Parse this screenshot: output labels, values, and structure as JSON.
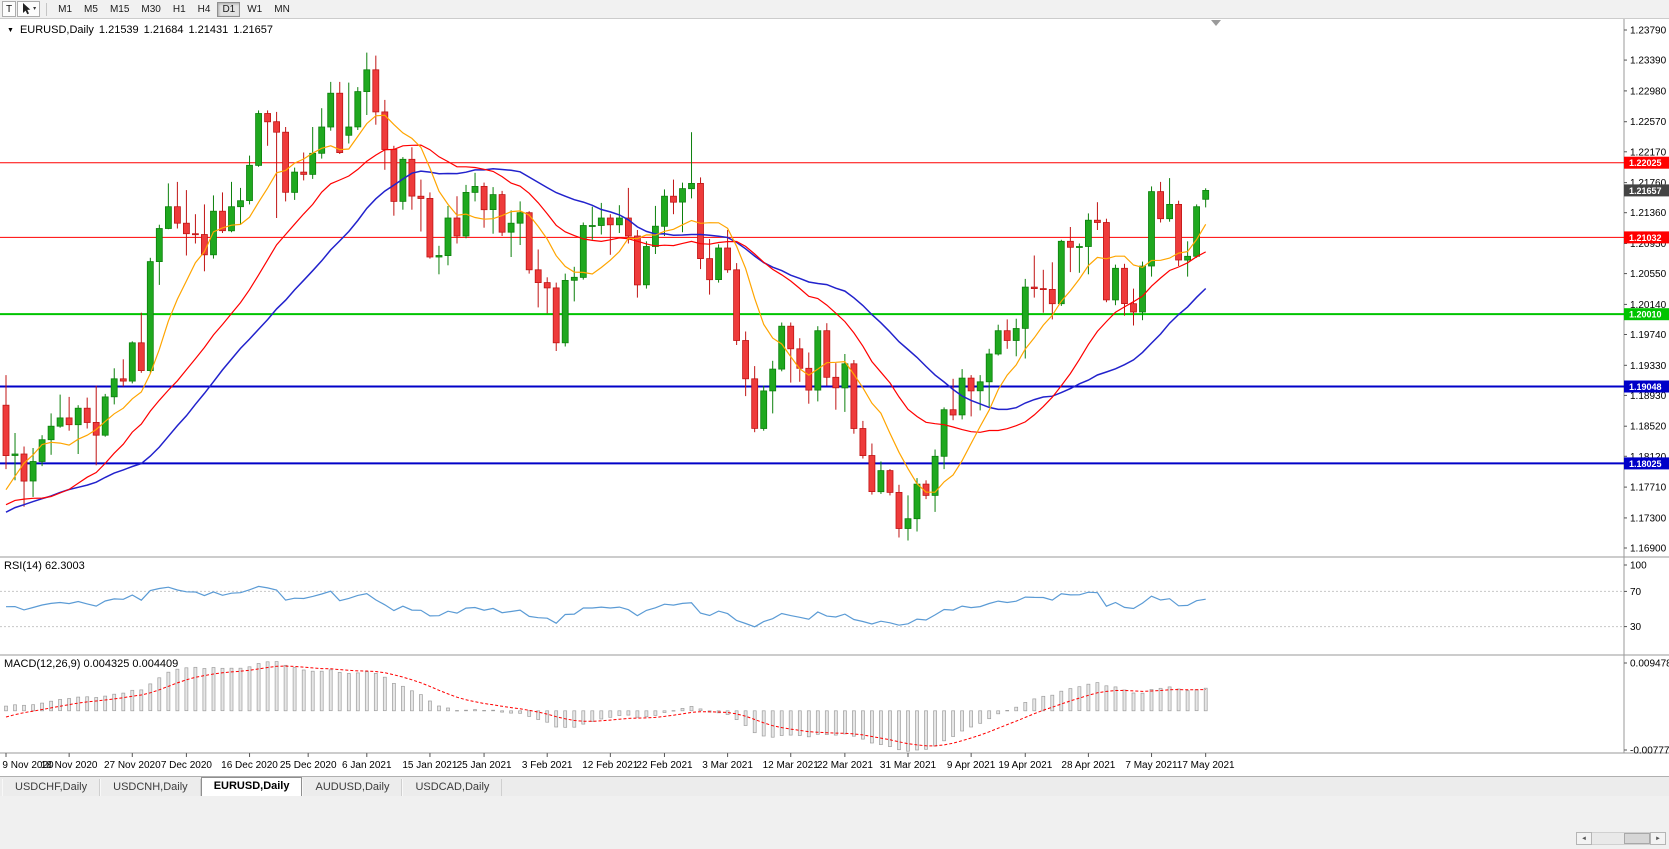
{
  "toolbar": {
    "chart_mode_button": "T",
    "timeframes": [
      "M1",
      "M5",
      "M15",
      "M30",
      "H1",
      "H4",
      "D1",
      "W1",
      "MN"
    ],
    "active_timeframe": "D1"
  },
  "icons": {
    "dropdown_caret": "▾"
  },
  "chart_header": {
    "collapse_icon": "▼",
    "symbol": "EURUSD,Daily",
    "open": "1.21539",
    "high": "1.21684",
    "low": "1.21431",
    "close": "1.21657"
  },
  "price_axis": {
    "labels": [
      "1.23790",
      "1.23390",
      "1.22980",
      "1.22570",
      "1.22170",
      "1.21760",
      "1.21360",
      "1.20950",
      "1.20550",
      "1.20140",
      "1.19740",
      "1.19330",
      "1.18930",
      "1.18520",
      "1.18120",
      "1.17710",
      "1.17300",
      "1.16900"
    ]
  },
  "hlines": [
    {
      "price": 1.22025,
      "label": "1.22025",
      "color": "#ff0000",
      "width": 1
    },
    {
      "price": 1.21032,
      "label": "1.21032",
      "color": "#ff0000",
      "width": 1
    },
    {
      "price": 1.2001,
      "label": "1.20010",
      "color": "#00c400",
      "width": 2
    },
    {
      "price": 1.19048,
      "label": "1.19048",
      "color": "#0000c8",
      "width": 2
    },
    {
      "price": 1.18025,
      "label": "1.18025",
      "color": "#0000c8",
      "width": 2
    }
  ],
  "current_price": {
    "value": 1.21657,
    "label": "1.21657"
  },
  "date_axis": [
    {
      "label": "9 Nov 2020",
      "index": 0
    },
    {
      "label": "18 Nov 2020",
      "index": 7
    },
    {
      "label": "27 Nov 2020",
      "index": 14
    },
    {
      "label": "7 Dec 2020",
      "index": 20
    },
    {
      "label": "16 Dec 2020",
      "index": 27
    },
    {
      "label": "25 Dec 2020",
      "index": 33.5
    },
    {
      "label": "6 Jan 2021",
      "index": 40
    },
    {
      "label": "15 Jan 2021",
      "index": 47
    },
    {
      "label": "25 Jan 2021",
      "index": 53
    },
    {
      "label": "3 Feb 2021",
      "index": 60
    },
    {
      "label": "12 Feb 2021",
      "index": 67
    },
    {
      "label": "22 Feb 2021",
      "index": 73
    },
    {
      "label": "3 Mar 2021",
      "index": 80
    },
    {
      "label": "12 Mar 2021",
      "index": 87
    },
    {
      "label": "22 Mar 2021",
      "index": 93
    },
    {
      "label": "31 Mar 2021",
      "index": 100
    },
    {
      "label": "9 Apr 2021",
      "index": 107
    },
    {
      "label": "19 Apr 2021",
      "index": 113
    },
    {
      "label": "28 Apr 2021",
      "index": 120
    },
    {
      "label": "7 May 2021",
      "index": 127
    },
    {
      "label": "17 May 2021",
      "index": 133
    }
  ],
  "rsi_panel": {
    "title": "RSI(14)",
    "value": "62.3003",
    "axis_labels": [
      {
        "v": 100,
        "label": "100"
      },
      {
        "v": 70,
        "label": "70"
      },
      {
        "v": 30,
        "label": "30"
      }
    ],
    "dashed_levels": [
      70,
      30
    ]
  },
  "macd_panel": {
    "title": "MACD(12,26,9)",
    "value": "0.004325 0.004409",
    "axis_max": 0.009478,
    "axis_min": -0.007778,
    "axis_max_label": "0.009478",
    "axis_min_label": "-0.007778"
  },
  "tabs": [
    {
      "label": "USDCHF,Daily",
      "active": false
    },
    {
      "label": "USDCNH,Daily",
      "active": false
    },
    {
      "label": "EURUSD,Daily",
      "active": true
    },
    {
      "label": "AUDUSD,Daily",
      "active": false
    },
    {
      "label": "USDCAD,Daily",
      "active": false
    }
  ],
  "scrollbar": {
    "left_arrow": "◄",
    "right_arrow": "►"
  },
  "colors": {
    "bull": "#1fa81f",
    "bull_stroke": "#0c800c",
    "bear": "#ee3b3b",
    "bear_stroke": "#c01414",
    "current_price_box": "#444444",
    "rsi_line": "#5b9bd5",
    "macd_hist_fill": "#e6e6e6",
    "macd_hist_stroke": "#9e9e9e",
    "macd_signal": "#ff0000",
    "panel_border": "#9a9a9a",
    "level_dash": "#c8c8c8"
  },
  "chart_data": {
    "type": "candlestick",
    "symbol": "EURUSD",
    "timeframe": "Daily",
    "y_range": [
      1.169,
      1.2379
    ],
    "y_tick_step": 0.0041,
    "overlays": [
      {
        "name": "ma-slow",
        "type": "sma",
        "period": 30,
        "color": "#2222cc",
        "width": 1.5
      },
      {
        "name": "ma-mid",
        "type": "sma",
        "period": 20,
        "color": "#ff0000",
        "width": 1.2
      },
      {
        "name": "ma-fast",
        "type": "sma",
        "period": 8,
        "color": "#ffa500",
        "width": 1.2
      }
    ],
    "indicators": [
      {
        "name": "RSI",
        "period": 14,
        "current": 62.3003
      },
      {
        "name": "MACD",
        "fast": 12,
        "slow": 26,
        "signal": 9,
        "current": [
          0.004325,
          0.004409
        ]
      }
    ],
    "pre_history_closes": [
      1.1915,
      1.186,
      1.1815,
      1.1782,
      1.1735,
      1.167,
      1.1632,
      1.1663,
      1.168,
      1.172,
      1.1745,
      1.1717,
      1.174,
      1.1786,
      1.1771,
      1.1723,
      1.1701,
      1.1744,
      1.1785,
      1.1827,
      1.181,
      1.177,
      1.1758,
      1.1713,
      1.1695,
      1.1716,
      1.1648,
      1.1645,
      1.1672,
      1.164,
      1.1715,
      1.1725,
      1.1828,
      1.1872,
      1.1875
    ],
    "candles": [
      [
        "2020-11-09",
        1.188,
        1.192,
        1.1795,
        1.1813
      ],
      [
        "2020-11-10",
        1.1813,
        1.1843,
        1.178,
        1.1815
      ],
      [
        "2020-11-11",
        1.1815,
        1.1825,
        1.1745,
        1.1779
      ],
      [
        "2020-11-12",
        1.1779,
        1.1823,
        1.1758,
        1.1805
      ],
      [
        "2020-11-13",
        1.1805,
        1.184,
        1.1799,
        1.1834
      ],
      [
        "2020-11-16",
        1.1834,
        1.1869,
        1.1814,
        1.1852
      ],
      [
        "2020-11-17",
        1.1852,
        1.1894,
        1.185,
        1.1863
      ],
      [
        "2020-11-18",
        1.1863,
        1.1891,
        1.1846,
        1.1854
      ],
      [
        "2020-11-19",
        1.1854,
        1.188,
        1.1815,
        1.1876
      ],
      [
        "2020-11-20",
        1.1876,
        1.189,
        1.1849,
        1.1857
      ],
      [
        "2020-11-23",
        1.1857,
        1.1906,
        1.18,
        1.184
      ],
      [
        "2020-11-24",
        1.184,
        1.1895,
        1.1838,
        1.1891
      ],
      [
        "2020-11-25",
        1.1891,
        1.1929,
        1.1881,
        1.1915
      ],
      [
        "2020-11-26",
        1.1915,
        1.1941,
        1.1905,
        1.1912
      ],
      [
        "2020-11-27",
        1.1912,
        1.1965,
        1.1909,
        1.1963
      ],
      [
        "2020-11-30",
        1.1963,
        1.2003,
        1.1923,
        1.1926
      ],
      [
        "2020-12-01",
        1.1926,
        1.2076,
        1.1923,
        1.2071
      ],
      [
        "2020-12-02",
        1.2071,
        1.212,
        1.204,
        1.2115
      ],
      [
        "2020-12-03",
        1.2115,
        1.2175,
        1.2114,
        1.2144
      ],
      [
        "2020-12-04",
        1.2144,
        1.2177,
        1.2115,
        1.2122
      ],
      [
        "2020-12-07",
        1.2122,
        1.2166,
        1.2079,
        1.2108
      ],
      [
        "2020-12-08",
        1.2108,
        1.2134,
        1.2095,
        1.2107
      ],
      [
        "2020-12-09",
        1.2107,
        1.2147,
        1.2058,
        1.208
      ],
      [
        "2020-12-10",
        1.208,
        1.2159,
        1.2075,
        1.2138
      ],
      [
        "2020-12-11",
        1.2138,
        1.2163,
        1.2109,
        1.2112
      ],
      [
        "2020-12-14",
        1.2112,
        1.2177,
        1.211,
        1.2144
      ],
      [
        "2020-12-15",
        1.2144,
        1.2169,
        1.212,
        1.2152
      ],
      [
        "2020-12-16",
        1.2152,
        1.2212,
        1.2147,
        1.2199
      ],
      [
        "2020-12-17",
        1.2199,
        1.2272,
        1.2197,
        1.2268
      ],
      [
        "2020-12-18",
        1.2268,
        1.2272,
        1.2225,
        1.2257
      ],
      [
        "2020-12-21",
        1.2257,
        1.227,
        1.2129,
        1.2243
      ],
      [
        "2020-12-22",
        1.2243,
        1.225,
        1.2151,
        1.2163
      ],
      [
        "2020-12-23",
        1.2163,
        1.2196,
        1.2153,
        1.219
      ],
      [
        "2020-12-24",
        1.219,
        1.2216,
        1.2179,
        1.2187
      ],
      [
        "2020-12-28",
        1.2187,
        1.225,
        1.2181,
        1.2215
      ],
      [
        "2020-12-29",
        1.2215,
        1.2275,
        1.2208,
        1.225
      ],
      [
        "2020-12-30",
        1.225,
        1.231,
        1.2245,
        1.2295
      ],
      [
        "2020-12-31",
        1.2295,
        1.231,
        1.2214,
        1.2216
      ],
      [
        "2021-01-04",
        1.2239,
        1.2309,
        1.2228,
        1.225
      ],
      [
        "2021-01-05",
        1.225,
        1.2303,
        1.2246,
        1.2297
      ],
      [
        "2021-01-06",
        1.2297,
        1.2349,
        1.2266,
        1.2326
      ],
      [
        "2021-01-07",
        1.2326,
        1.2345,
        1.2253,
        1.227
      ],
      [
        "2021-01-08",
        1.227,
        1.2286,
        1.2193,
        1.222
      ],
      [
        "2021-01-11",
        1.222,
        1.2225,
        1.2132,
        1.2151
      ],
      [
        "2021-01-12",
        1.2151,
        1.221,
        1.214,
        1.2207
      ],
      [
        "2021-01-13",
        1.2207,
        1.2223,
        1.214,
        1.2158
      ],
      [
        "2021-01-14",
        1.2158,
        1.218,
        1.2111,
        1.2155
      ],
      [
        "2021-01-15",
        1.2155,
        1.2163,
        1.2075,
        1.2077
      ],
      [
        "2021-01-18",
        1.2077,
        1.2092,
        1.2054,
        1.2079
      ],
      [
        "2021-01-19",
        1.2079,
        1.2145,
        1.2066,
        1.2129
      ],
      [
        "2021-01-20",
        1.2129,
        1.2158,
        1.2095,
        1.2105
      ],
      [
        "2021-01-21",
        1.2105,
        1.2173,
        1.2102,
        1.2163
      ],
      [
        "2021-01-22",
        1.2163,
        1.2189,
        1.2151,
        1.2171
      ],
      [
        "2021-01-25",
        1.2171,
        1.2176,
        1.2116,
        1.214
      ],
      [
        "2021-01-26",
        1.214,
        1.217,
        1.2108,
        1.216
      ],
      [
        "2021-01-27",
        1.216,
        1.2165,
        1.2105,
        1.211
      ],
      [
        "2021-01-28",
        1.211,
        1.2139,
        1.2077,
        1.2122
      ],
      [
        "2021-01-29",
        1.2122,
        1.2151,
        1.2093,
        1.2136
      ],
      [
        "2021-02-01",
        1.2136,
        1.2138,
        1.2055,
        1.206
      ],
      [
        "2021-02-02",
        1.206,
        1.2087,
        1.201,
        1.2043
      ],
      [
        "2021-02-03",
        1.2043,
        1.205,
        1.2002,
        1.2036
      ],
      [
        "2021-02-04",
        1.2036,
        1.2043,
        1.1952,
        1.1963
      ],
      [
        "2021-02-05",
        1.1963,
        1.2055,
        1.1958,
        1.2046
      ],
      [
        "2021-02-08",
        1.2046,
        1.2064,
        1.2018,
        1.205
      ],
      [
        "2021-02-09",
        1.205,
        1.2123,
        1.2047,
        1.2119
      ],
      [
        "2021-02-10",
        1.2119,
        1.2144,
        1.21,
        1.2119
      ],
      [
        "2021-02-11",
        1.2119,
        1.2149,
        1.2107,
        1.2129
      ],
      [
        "2021-02-12",
        1.2129,
        1.2134,
        1.208,
        1.212
      ],
      [
        "2021-02-15",
        1.212,
        1.2146,
        1.2109,
        1.2129
      ],
      [
        "2021-02-16",
        1.2129,
        1.2169,
        1.2095,
        1.2105
      ],
      [
        "2021-02-17",
        1.2105,
        1.2113,
        1.2023,
        1.204
      ],
      [
        "2021-02-18",
        1.204,
        1.2098,
        1.2035,
        1.2091
      ],
      [
        "2021-02-19",
        1.2091,
        1.2145,
        1.2081,
        1.2118
      ],
      [
        "2021-02-22",
        1.2118,
        1.2167,
        1.2105,
        1.2158
      ],
      [
        "2021-02-23",
        1.2158,
        1.218,
        1.2134,
        1.215
      ],
      [
        "2021-02-24",
        1.215,
        1.2176,
        1.211,
        1.2168
      ],
      [
        "2021-02-25",
        1.2168,
        1.2243,
        1.2155,
        1.2175
      ],
      [
        "2021-02-26",
        1.2175,
        1.2183,
        1.2061,
        1.2075
      ],
      [
        "2021-03-01",
        1.2075,
        1.2101,
        1.2027,
        1.2047
      ],
      [
        "2021-03-02",
        1.2047,
        1.2094,
        1.2043,
        1.2089
      ],
      [
        "2021-03-03",
        1.2089,
        1.2113,
        1.2056,
        1.206
      ],
      [
        "2021-03-04",
        1.206,
        1.2069,
        1.196,
        1.1966
      ],
      [
        "2021-03-05",
        1.1966,
        1.1978,
        1.1892,
        1.1915
      ],
      [
        "2021-03-08",
        1.1915,
        1.1932,
        1.1844,
        1.1849
      ],
      [
        "2021-03-09",
        1.1849,
        1.1906,
        1.1846,
        1.1899
      ],
      [
        "2021-03-10",
        1.1899,
        1.1939,
        1.1869,
        1.1928
      ],
      [
        "2021-03-11",
        1.1928,
        1.199,
        1.1925,
        1.1985
      ],
      [
        "2021-03-12",
        1.1985,
        1.199,
        1.191,
        1.1955
      ],
      [
        "2021-03-15",
        1.1955,
        1.1969,
        1.1911,
        1.1929
      ],
      [
        "2021-03-16",
        1.1929,
        1.195,
        1.1882,
        1.19
      ],
      [
        "2021-03-17",
        1.19,
        1.1985,
        1.1885,
        1.1979
      ],
      [
        "2021-03-18",
        1.1979,
        1.1989,
        1.1906,
        1.1917
      ],
      [
        "2021-03-19",
        1.1917,
        1.1936,
        1.1874,
        1.1903
      ],
      [
        "2021-03-22",
        1.1903,
        1.1948,
        1.1871,
        1.1935
      ],
      [
        "2021-03-23",
        1.1935,
        1.194,
        1.1842,
        1.1849
      ],
      [
        "2021-03-24",
        1.1849,
        1.1859,
        1.1809,
        1.1813
      ],
      [
        "2021-03-25",
        1.1813,
        1.1829,
        1.1761,
        1.1765
      ],
      [
        "2021-03-26",
        1.1765,
        1.1805,
        1.1762,
        1.1793
      ],
      [
        "2021-03-29",
        1.1793,
        1.1795,
        1.176,
        1.1764
      ],
      [
        "2021-03-30",
        1.1764,
        1.1774,
        1.1704,
        1.1716
      ],
      [
        "2021-03-31",
        1.1716,
        1.176,
        1.17,
        1.1729
      ],
      [
        "2021-04-01",
        1.1729,
        1.1783,
        1.1712,
        1.1775
      ],
      [
        "2021-04-02",
        1.1775,
        1.178,
        1.1755,
        1.176
      ],
      [
        "2021-04-05",
        1.176,
        1.1821,
        1.1738,
        1.1812
      ],
      [
        "2021-04-06",
        1.1812,
        1.1877,
        1.1795,
        1.1874
      ],
      [
        "2021-04-07",
        1.1874,
        1.1915,
        1.186,
        1.1867
      ],
      [
        "2021-04-08",
        1.1867,
        1.1928,
        1.1861,
        1.1916
      ],
      [
        "2021-04-09",
        1.1916,
        1.192,
        1.1865,
        1.1899
      ],
      [
        "2021-04-12",
        1.1899,
        1.192,
        1.1873,
        1.1911
      ],
      [
        "2021-04-13",
        1.1911,
        1.1955,
        1.1878,
        1.1948
      ],
      [
        "2021-04-14",
        1.1948,
        1.1987,
        1.1946,
        1.1979
      ],
      [
        "2021-04-15",
        1.1979,
        1.1994,
        1.1955,
        1.1966
      ],
      [
        "2021-04-16",
        1.1966,
        1.1995,
        1.1945,
        1.1982
      ],
      [
        "2021-04-19",
        1.1982,
        1.2048,
        1.1942,
        1.2037
      ],
      [
        "2021-04-20",
        1.2037,
        1.2079,
        1.2023,
        1.2035
      ],
      [
        "2021-04-21",
        1.2035,
        1.206,
        1.2003,
        1.2034
      ],
      [
        "2021-04-22",
        1.2034,
        1.207,
        1.1994,
        1.2015
      ],
      [
        "2021-04-23",
        1.2015,
        1.21,
        1.2012,
        1.2098
      ],
      [
        "2021-04-26",
        1.2098,
        1.2117,
        1.2057,
        1.209
      ],
      [
        "2021-04-27",
        1.209,
        1.2095,
        1.2056,
        1.2091
      ],
      [
        "2021-04-28",
        1.2091,
        1.2135,
        1.2054,
        1.2126
      ],
      [
        "2021-04-29",
        1.2126,
        1.215,
        1.2113,
        1.2123
      ],
      [
        "2021-04-30",
        1.2123,
        1.2128,
        1.2017,
        1.202
      ],
      [
        "2021-05-03",
        1.202,
        1.2067,
        1.2013,
        1.2062
      ],
      [
        "2021-05-04",
        1.2062,
        1.2068,
        1.1999,
        1.2015
      ],
      [
        "2021-05-05",
        1.2015,
        1.2035,
        1.1986,
        1.2004
      ],
      [
        "2021-05-06",
        1.2004,
        1.2071,
        1.1993,
        1.2065
      ],
      [
        "2021-05-07",
        1.2065,
        1.2171,
        1.2051,
        1.2164
      ],
      [
        "2021-05-10",
        1.2164,
        1.2177,
        1.2123,
        1.2128
      ],
      [
        "2021-05-11",
        1.2128,
        1.2182,
        1.2124,
        1.2147
      ],
      [
        "2021-05-12",
        1.2147,
        1.2152,
        1.2065,
        1.2073
      ],
      [
        "2021-05-13",
        1.2073,
        1.2098,
        1.2051,
        1.2078
      ],
      [
        "2021-05-14",
        1.2078,
        1.2147,
        1.2076,
        1.2144
      ],
      [
        "2021-05-17",
        1.21539,
        1.21684,
        1.21431,
        1.21657
      ]
    ]
  }
}
